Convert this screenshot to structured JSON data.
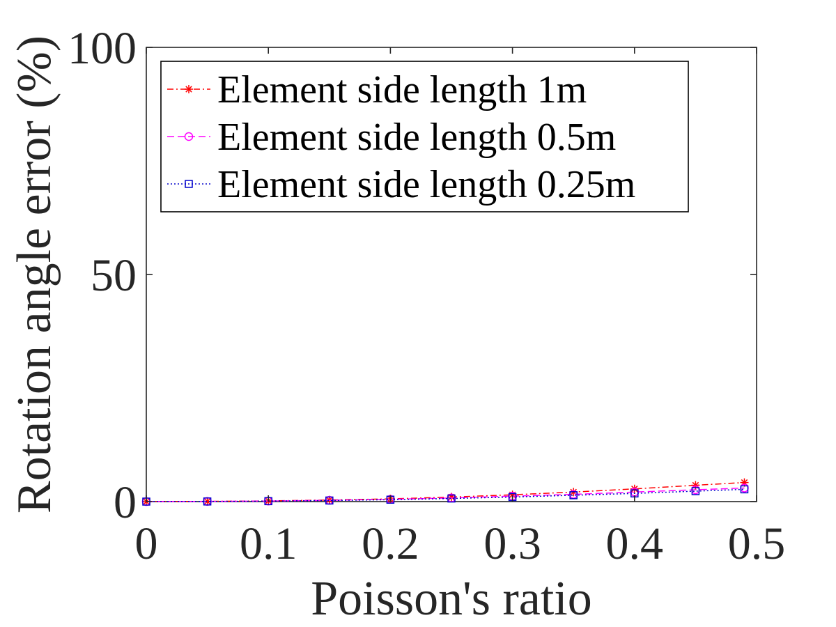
{
  "chart_data": {
    "type": "line",
    "xlabel": "Poisson's ratio",
    "ylabel": "Rotation angle error (%)",
    "xlim": [
      0,
      0.5
    ],
    "ylim": [
      0,
      100
    ],
    "xticks": [
      "0",
      "0.1",
      "0.2",
      "0.3",
      "0.4",
      "0.5"
    ],
    "yticks": [
      "0",
      "50",
      "100"
    ],
    "grid": false,
    "legend_position": "top-left",
    "x": [
      0,
      0.05,
      0.1,
      0.15,
      0.2,
      0.25,
      0.3,
      0.35,
      0.4,
      0.45,
      0.49
    ],
    "series": [
      {
        "name": "Element side length 1m",
        "color": "#ff0000",
        "marker": "asterisk",
        "line_style": "dash-dot",
        "values": [
          0,
          0.05,
          0.15,
          0.35,
          0.6,
          1.0,
          1.5,
          2.1,
          2.8,
          3.6,
          4.2
        ]
      },
      {
        "name": "Element side length 0.5m",
        "color": "#ff00ff",
        "marker": "circle",
        "line_style": "dashed",
        "values": [
          0,
          0.04,
          0.12,
          0.28,
          0.5,
          0.8,
          1.2,
          1.6,
          2.1,
          2.6,
          3.0
        ]
      },
      {
        "name": "Element side length 0.25m",
        "color": "#0000cc",
        "marker": "square",
        "line_style": "dotted",
        "values": [
          0,
          0.03,
          0.1,
          0.24,
          0.42,
          0.68,
          1.0,
          1.4,
          1.8,
          2.3,
          2.7
        ]
      }
    ]
  }
}
